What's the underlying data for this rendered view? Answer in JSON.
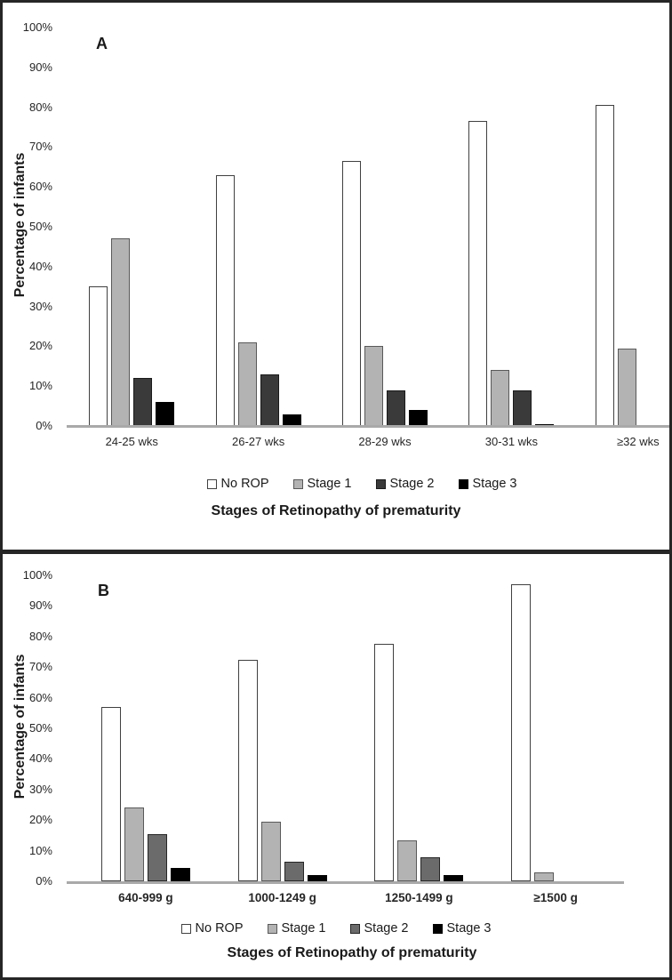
{
  "colors": {
    "panel_border": "#262626",
    "axis_line": "#a9a9a9",
    "text": "#1a1a1a"
  },
  "chart_data": [
    {
      "type": "bar",
      "panel_label": "A",
      "categories": [
        "24-25 wks",
        "26-27 wks",
        "28-29 wks",
        "30-31 wks",
        "≥32 wks"
      ],
      "series": [
        {
          "name": "No ROP",
          "fill": "#ffffff",
          "stroke": "#404040",
          "values": [
            35,
            63,
            66.5,
            76.5,
            80.5
          ]
        },
        {
          "name": "Stage 1",
          "fill": "#b3b3b3",
          "stroke": "#595959",
          "values": [
            47,
            21,
            20,
            14,
            19.5
          ]
        },
        {
          "name": "Stage 2",
          "fill": "#3a3a3a",
          "stroke": "#1a1a1a",
          "values": [
            12,
            13,
            9,
            9,
            0
          ]
        },
        {
          "name": "Stage 3",
          "fill": "#000000",
          "stroke": "#000000",
          "values": [
            6,
            3,
            4,
            0.5,
            0
          ]
        }
      ],
      "xlabel": "Stages of Retinopathy of prematurity",
      "ylabel": "Percentage of infants",
      "ylim": [
        0,
        100
      ],
      "yticks": [
        "0%",
        "10%",
        "20%",
        "30%",
        "40%",
        "50%",
        "60%",
        "70%",
        "80%",
        "90%",
        "100%"
      ],
      "legend_position": "bottom",
      "grid": false
    },
    {
      "type": "bar",
      "panel_label": "B",
      "categories": [
        "640-999 g",
        "1000-1249 g",
        "1250-1499 g",
        "≥1500 g"
      ],
      "series": [
        {
          "name": "No ROP",
          "fill": "#ffffff",
          "stroke": "#404040",
          "values": [
            57,
            72.5,
            77.5,
            97
          ]
        },
        {
          "name": "Stage 1",
          "fill": "#b3b3b3",
          "stroke": "#595959",
          "values": [
            24,
            19.5,
            13.5,
            3
          ]
        },
        {
          "name": "Stage 2",
          "fill": "#6b6b6b",
          "stroke": "#262626",
          "values": [
            15.5,
            6.5,
            8,
            0
          ]
        },
        {
          "name": "Stage 3",
          "fill": "#000000",
          "stroke": "#000000",
          "values": [
            4.5,
            2,
            2,
            0
          ]
        }
      ],
      "xlabel": "Stages of Retinopathy of prematurity",
      "ylabel": "Percentage of infants",
      "ylim": [
        0,
        100
      ],
      "yticks": [
        "0%",
        "10%",
        "20%",
        "30%",
        "40%",
        "50%",
        "60%",
        "70%",
        "80%",
        "90%",
        "100%"
      ],
      "legend_position": "bottom",
      "grid": false
    }
  ]
}
